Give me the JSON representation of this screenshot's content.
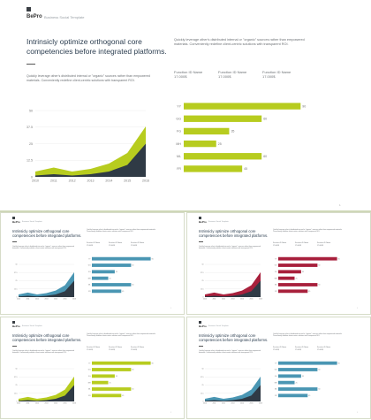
{
  "brand": {
    "name": "BePro",
    "subtitle": "Business Social Template"
  },
  "title_line1": "Intrinsicly optimize orthogonal core",
  "title_line2": "competencies before integrated platforms.",
  "paragraph_right": "Quickly leverage other's distributed internal or \"organic\" sources rather than empowered materials. Conveniently redefine client-centric solutions with transparent ROI.",
  "paragraph_left": "Quickly leverage other's distributed internal or \"organic\" sources rather than empowered materials. Conveniently redefine client-centric solutions with transparent ROI.",
  "functions": [
    {
      "name": "Function ID Name",
      "value": "17.000$"
    },
    {
      "name": "Function ID Name",
      "value": "17.000$"
    },
    {
      "name": "Function ID Name",
      "value": "17.000$"
    }
  ],
  "page_number": "1",
  "colors": {
    "green": "#b7cc1f",
    "green_light": "#c9dc3a",
    "dark": "#2f3a45",
    "blue": "#4a96b3",
    "crimson": "#a8203c"
  },
  "thumb_variants": [
    {
      "accent": "#4a96b3"
    },
    {
      "accent": "#a8203c"
    },
    {
      "accent": "#b7cc1f"
    },
    {
      "accent": "#4a96b3"
    }
  ],
  "chart_data": [
    {
      "type": "area",
      "x": [
        "2010",
        "2011",
        "2012",
        "2013",
        "2014",
        "2015",
        "2016"
      ],
      "ylim": [
        0,
        50
      ],
      "y_ticks": [
        "0",
        "12.5",
        "25",
        "37.5",
        "50"
      ],
      "series": [
        {
          "values": [
            4,
            7,
            4,
            6,
            10,
            18,
            38
          ]
        },
        {
          "values": [
            1,
            2,
            1,
            2,
            4,
            9,
            25
          ]
        }
      ]
    },
    {
      "type": "bar",
      "orientation": "horizontal",
      "categories": [
        "YY",
        "GG",
        "FG",
        "MH",
        "ML",
        "FR"
      ],
      "values": [
        90,
        60,
        35,
        25,
        60,
        45
      ],
      "xlim": [
        0,
        100
      ]
    }
  ]
}
